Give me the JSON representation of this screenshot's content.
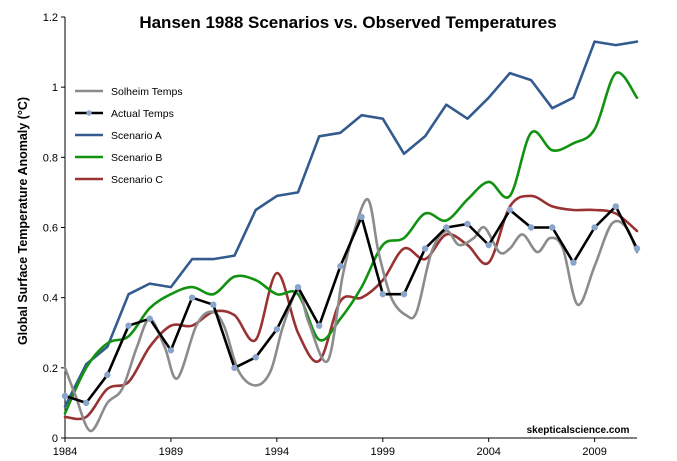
{
  "chart_data": {
    "type": "line",
    "title": "Hansen 1988 Scenarios vs. Observed Temperatures",
    "xlabel": "",
    "ylabel": "Global Surface Temperature Anomaly (°C)",
    "xlim": [
      1984,
      2011
    ],
    "ylim": [
      0,
      1.2
    ],
    "x_ticks": [
      1984,
      1989,
      1994,
      1999,
      2004,
      2009
    ],
    "y_ticks": [
      0,
      0.2,
      0.4,
      0.6,
      0.8,
      1,
      1.2
    ],
    "y_tick_labels": [
      "0",
      "0.2",
      "0.4",
      "0.6",
      "0.8",
      "1",
      "1.2"
    ],
    "grid": false,
    "legend_position": "left",
    "annotation": "skepticalscience.com",
    "series": [
      {
        "name": "Solheim Temps",
        "color": "#8c8c8c",
        "smooth": true,
        "markers": false,
        "points": [
          [
            1984,
            0.2
          ],
          [
            1984.5,
            0.12
          ],
          [
            1985.2,
            0.02
          ],
          [
            1986.0,
            0.1
          ],
          [
            1986.7,
            0.14
          ],
          [
            1987.4,
            0.26
          ],
          [
            1988.0,
            0.34
          ],
          [
            1988.7,
            0.26
          ],
          [
            1989.3,
            0.17
          ],
          [
            1990.2,
            0.32
          ],
          [
            1990.9,
            0.36
          ],
          [
            1991.5,
            0.32
          ],
          [
            1992.2,
            0.19
          ],
          [
            1993.0,
            0.15
          ],
          [
            1993.7,
            0.19
          ],
          [
            1994.3,
            0.32
          ],
          [
            1995.0,
            0.42
          ],
          [
            1995.5,
            0.33
          ],
          [
            1996.4,
            0.22
          ],
          [
            1997.1,
            0.46
          ],
          [
            1997.6,
            0.58
          ],
          [
            1998.3,
            0.68
          ],
          [
            1998.8,
            0.53
          ],
          [
            1999.4,
            0.4
          ],
          [
            2000.1,
            0.35
          ],
          [
            2000.6,
            0.36
          ],
          [
            2001.3,
            0.53
          ],
          [
            2002.0,
            0.59
          ],
          [
            2002.6,
            0.55
          ],
          [
            2003.3,
            0.57
          ],
          [
            2003.8,
            0.6
          ],
          [
            2004.5,
            0.53
          ],
          [
            2005.0,
            0.54
          ],
          [
            2005.6,
            0.58
          ],
          [
            2006.3,
            0.53
          ],
          [
            2006.9,
            0.57
          ],
          [
            2007.5,
            0.54
          ],
          [
            2008.2,
            0.38
          ],
          [
            2009.0,
            0.49
          ],
          [
            2009.8,
            0.61
          ],
          [
            2010.5,
            0.6
          ],
          [
            2011.0,
            0.53
          ]
        ]
      },
      {
        "name": "Actual Temps",
        "color": "#000000",
        "marker_color": "#8aa5cc",
        "smooth": false,
        "markers": true,
        "points": [
          [
            1984,
            0.12
          ],
          [
            1985,
            0.1
          ],
          [
            1986,
            0.18
          ],
          [
            1987,
            0.32
          ],
          [
            1988,
            0.34
          ],
          [
            1989,
            0.25
          ],
          [
            1990,
            0.4
          ],
          [
            1991,
            0.38
          ],
          [
            1992,
            0.2
          ],
          [
            1993,
            0.23
          ],
          [
            1994,
            0.31
          ],
          [
            1995,
            0.43
          ],
          [
            1996,
            0.32
          ],
          [
            1997,
            0.49
          ],
          [
            1998,
            0.63
          ],
          [
            1999,
            0.41
          ],
          [
            2000,
            0.41
          ],
          [
            2001,
            0.54
          ],
          [
            2002,
            0.6
          ],
          [
            2003,
            0.61
          ],
          [
            2004,
            0.55
          ],
          [
            2005,
            0.65
          ],
          [
            2006,
            0.6
          ],
          [
            2007,
            0.6
          ],
          [
            2008,
            0.5
          ],
          [
            2009,
            0.6
          ],
          [
            2010,
            0.66
          ],
          [
            2011,
            0.54
          ]
        ]
      },
      {
        "name": "Scenario A",
        "color": "#345b8f",
        "smooth": false,
        "markers": false,
        "points": [
          [
            1984,
            0.09
          ],
          [
            1985,
            0.21
          ],
          [
            1986,
            0.26
          ],
          [
            1987,
            0.41
          ],
          [
            1988,
            0.44
          ],
          [
            1989,
            0.43
          ],
          [
            1990,
            0.51
          ],
          [
            1991,
            0.51
          ],
          [
            1992,
            0.52
          ],
          [
            1993,
            0.65
          ],
          [
            1994,
            0.69
          ],
          [
            1995,
            0.7
          ],
          [
            1996,
            0.86
          ],
          [
            1997,
            0.87
          ],
          [
            1998,
            0.92
          ],
          [
            1999,
            0.91
          ],
          [
            2000,
            0.81
          ],
          [
            2001,
            0.86
          ],
          [
            2002,
            0.95
          ],
          [
            2003,
            0.91
          ],
          [
            2004,
            0.97
          ],
          [
            2005,
            1.04
          ],
          [
            2006,
            1.02
          ],
          [
            2007,
            0.94
          ],
          [
            2008,
            0.97
          ],
          [
            2009,
            1.13
          ],
          [
            2010,
            1.12
          ],
          [
            2011,
            1.13
          ]
        ]
      },
      {
        "name": "Scenario B",
        "color": "#119311",
        "smooth": true,
        "markers": false,
        "points": [
          [
            1984,
            0.07
          ],
          [
            1985,
            0.2
          ],
          [
            1986,
            0.27
          ],
          [
            1987,
            0.29
          ],
          [
            1988,
            0.37
          ],
          [
            1989,
            0.41
          ],
          [
            1990,
            0.43
          ],
          [
            1991,
            0.41
          ],
          [
            1992,
            0.46
          ],
          [
            1993,
            0.45
          ],
          [
            1994,
            0.41
          ],
          [
            1995,
            0.41
          ],
          [
            1996,
            0.28
          ],
          [
            1997,
            0.34
          ],
          [
            1998,
            0.43
          ],
          [
            1999,
            0.55
          ],
          [
            2000,
            0.57
          ],
          [
            2001,
            0.64
          ],
          [
            2002,
            0.62
          ],
          [
            2003,
            0.68
          ],
          [
            2004,
            0.73
          ],
          [
            2005,
            0.69
          ],
          [
            2006,
            0.87
          ],
          [
            2007,
            0.82
          ],
          [
            2008,
            0.84
          ],
          [
            2009,
            0.88
          ],
          [
            2010,
            1.04
          ],
          [
            2011,
            0.97
          ]
        ]
      },
      {
        "name": "Scenario C",
        "color": "#993333",
        "smooth": true,
        "markers": false,
        "points": [
          [
            1984,
            0.06
          ],
          [
            1985,
            0.06
          ],
          [
            1986,
            0.14
          ],
          [
            1987,
            0.16
          ],
          [
            1988,
            0.26
          ],
          [
            1989,
            0.32
          ],
          [
            1990,
            0.32
          ],
          [
            1991,
            0.36
          ],
          [
            1992,
            0.35
          ],
          [
            1993,
            0.28
          ],
          [
            1994,
            0.47
          ],
          [
            1995,
            0.3
          ],
          [
            1996,
            0.22
          ],
          [
            1997,
            0.39
          ],
          [
            1998,
            0.4
          ],
          [
            1999,
            0.45
          ],
          [
            2000,
            0.54
          ],
          [
            2001,
            0.51
          ],
          [
            2002,
            0.58
          ],
          [
            2003,
            0.55
          ],
          [
            2004,
            0.5
          ],
          [
            2005,
            0.66
          ],
          [
            2006,
            0.69
          ],
          [
            2007,
            0.66
          ],
          [
            2008,
            0.65
          ],
          [
            2009,
            0.65
          ],
          [
            2010,
            0.64
          ],
          [
            2011,
            0.59
          ]
        ]
      }
    ]
  }
}
